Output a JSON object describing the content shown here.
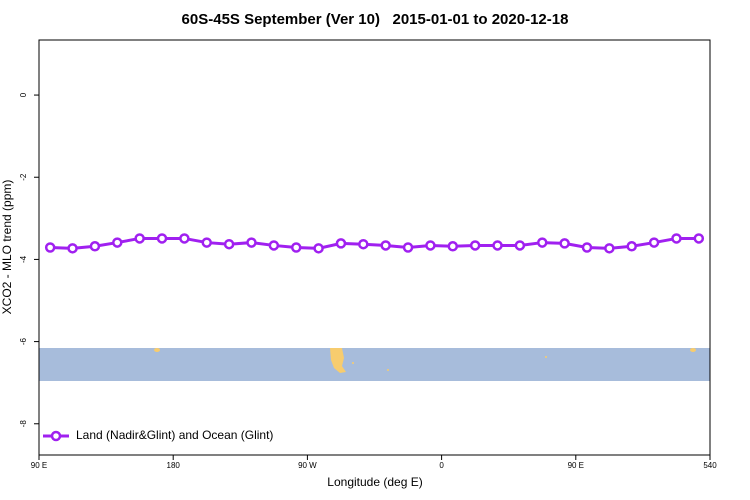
{
  "chart_data": {
    "type": "line",
    "title": "60S-45S September (Ver 10)   2015-01-01 to 2020-12-18",
    "xlabel": "Longitude (deg E)",
    "ylabel": "XCO2 - MLO trend (ppm)",
    "x": [
      97.5,
      112.5,
      127.5,
      142.5,
      157.5,
      172.5,
      187.5,
      202.5,
      217.5,
      232.5,
      247.5,
      262.5,
      277.5,
      292.5,
      307.5,
      322.5,
      337.5,
      352.5,
      367.5,
      382.5,
      397.5,
      412.5,
      427.5,
      442.5,
      457.5,
      472.5,
      487.5,
      502.5,
      517.5,
      532.5
    ],
    "series": [
      {
        "name": "Land (Nadir&Glint) and Ocean (Glint)",
        "color": "#a020f0",
        "values": [
          -3.71,
          -3.73,
          -3.68,
          -3.59,
          -3.49,
          -3.49,
          -3.49,
          -3.59,
          -3.63,
          -3.59,
          -3.66,
          -3.71,
          -3.73,
          -3.61,
          -3.63,
          -3.66,
          -3.71,
          -3.66,
          -3.68,
          -3.66,
          -3.66,
          -3.66,
          -3.59,
          -3.61,
          -3.71,
          -3.73,
          -3.68,
          -3.59,
          -3.49,
          -3.49
        ]
      }
    ],
    "xlim": [
      90,
      540
    ],
    "xticks": [
      {
        "value": 90,
        "label": "90 E"
      },
      180,
      {
        "value": 270,
        "label": "90 W"
      },
      {
        "value": 360,
        "label": "0"
      },
      {
        "value": 450,
        "label": "90 E"
      },
      540
    ],
    "ylim": [
      -8.76,
      1.34
    ],
    "yticks": [
      0,
      -2,
      -4,
      -6,
      -8
    ],
    "legend": "bottom-left"
  }
}
